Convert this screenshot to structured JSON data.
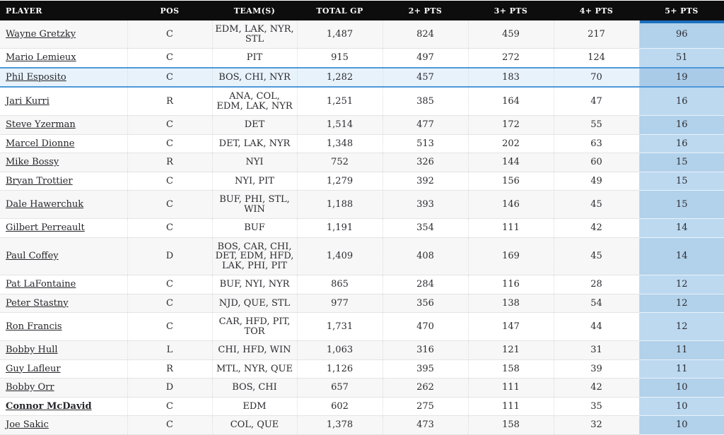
{
  "colors": {
    "header_bg": "#0d0d0d",
    "header_text": "#ffffff",
    "row_stripe": "#f7f7f7",
    "highlight_row_bg": "#e8f2fb",
    "highlight_row_border": "#4d99d9",
    "sort_column_bg": "#bcd9f0",
    "sort_column_bar": "#1a6fbe",
    "text": "#2b2b30"
  },
  "table": {
    "sorted_column": "pts5",
    "columns": [
      {
        "key": "player",
        "label": "PLAYER"
      },
      {
        "key": "pos",
        "label": "POS"
      },
      {
        "key": "teams",
        "label": "TEAM(S)"
      },
      {
        "key": "total_gp",
        "label": "TOTAL GP"
      },
      {
        "key": "pts2",
        "label": "2+ PTS"
      },
      {
        "key": "pts3",
        "label": "3+ PTS"
      },
      {
        "key": "pts4",
        "label": "4+ PTS"
      },
      {
        "key": "pts5",
        "label": "5+ PTS"
      }
    ],
    "rows": [
      {
        "player": "Wayne Gretzky",
        "pos": "C",
        "teams": "EDM, LAK, NYR, STL",
        "total_gp": "1,487",
        "pts2": "824",
        "pts3": "459",
        "pts4": "217",
        "pts5": "96",
        "bold": false,
        "highlighted": false
      },
      {
        "player": "Mario Lemieux",
        "pos": "C",
        "teams": "PIT",
        "total_gp": "915",
        "pts2": "497",
        "pts3": "272",
        "pts4": "124",
        "pts5": "51",
        "bold": false,
        "highlighted": false
      },
      {
        "player": "Phil Esposito",
        "pos": "C",
        "teams": "BOS, CHI, NYR",
        "total_gp": "1,282",
        "pts2": "457",
        "pts3": "183",
        "pts4": "70",
        "pts5": "19",
        "bold": false,
        "highlighted": true
      },
      {
        "player": "Jari Kurri",
        "pos": "R",
        "teams": "ANA, COL, EDM, LAK, NYR",
        "total_gp": "1,251",
        "pts2": "385",
        "pts3": "164",
        "pts4": "47",
        "pts5": "16",
        "bold": false,
        "highlighted": false
      },
      {
        "player": "Steve Yzerman",
        "pos": "C",
        "teams": "DET",
        "total_gp": "1,514",
        "pts2": "477",
        "pts3": "172",
        "pts4": "55",
        "pts5": "16",
        "bold": false,
        "highlighted": false
      },
      {
        "player": "Marcel Dionne",
        "pos": "C",
        "teams": "DET, LAK, NYR",
        "total_gp": "1,348",
        "pts2": "513",
        "pts3": "202",
        "pts4": "63",
        "pts5": "16",
        "bold": false,
        "highlighted": false
      },
      {
        "player": "Mike Bossy",
        "pos": "R",
        "teams": "NYI",
        "total_gp": "752",
        "pts2": "326",
        "pts3": "144",
        "pts4": "60",
        "pts5": "15",
        "bold": false,
        "highlighted": false
      },
      {
        "player": "Bryan Trottier",
        "pos": "C",
        "teams": "NYI, PIT",
        "total_gp": "1,279",
        "pts2": "392",
        "pts3": "156",
        "pts4": "49",
        "pts5": "15",
        "bold": false,
        "highlighted": false
      },
      {
        "player": "Dale Hawerchuk",
        "pos": "C",
        "teams": "BUF, PHI, STL, WIN",
        "total_gp": "1,188",
        "pts2": "393",
        "pts3": "146",
        "pts4": "45",
        "pts5": "15",
        "bold": false,
        "highlighted": false
      },
      {
        "player": "Gilbert Perreault",
        "pos": "C",
        "teams": "BUF",
        "total_gp": "1,191",
        "pts2": "354",
        "pts3": "111",
        "pts4": "42",
        "pts5": "14",
        "bold": false,
        "highlighted": false
      },
      {
        "player": "Paul Coffey",
        "pos": "D",
        "teams": "BOS, CAR, CHI, DET, EDM, HFD, LAK, PHI, PIT",
        "total_gp": "1,409",
        "pts2": "408",
        "pts3": "169",
        "pts4": "45",
        "pts5": "14",
        "bold": false,
        "highlighted": false
      },
      {
        "player": "Pat LaFontaine",
        "pos": "C",
        "teams": "BUF, NYI, NYR",
        "total_gp": "865",
        "pts2": "284",
        "pts3": "116",
        "pts4": "28",
        "pts5": "12",
        "bold": false,
        "highlighted": false
      },
      {
        "player": "Peter Stastny",
        "pos": "C",
        "teams": "NJD, QUE, STL",
        "total_gp": "977",
        "pts2": "356",
        "pts3": "138",
        "pts4": "54",
        "pts5": "12",
        "bold": false,
        "highlighted": false
      },
      {
        "player": "Ron Francis",
        "pos": "C",
        "teams": "CAR, HFD, PIT, TOR",
        "total_gp": "1,731",
        "pts2": "470",
        "pts3": "147",
        "pts4": "44",
        "pts5": "12",
        "bold": false,
        "highlighted": false
      },
      {
        "player": "Bobby Hull",
        "pos": "L",
        "teams": "CHI, HFD, WIN",
        "total_gp": "1,063",
        "pts2": "316",
        "pts3": "121",
        "pts4": "31",
        "pts5": "11",
        "bold": false,
        "highlighted": false
      },
      {
        "player": "Guy Lafleur",
        "pos": "R",
        "teams": "MTL, NYR, QUE",
        "total_gp": "1,126",
        "pts2": "395",
        "pts3": "158",
        "pts4": "39",
        "pts5": "11",
        "bold": false,
        "highlighted": false
      },
      {
        "player": "Bobby Orr",
        "pos": "D",
        "teams": "BOS, CHI",
        "total_gp": "657",
        "pts2": "262",
        "pts3": "111",
        "pts4": "42",
        "pts5": "10",
        "bold": false,
        "highlighted": false
      },
      {
        "player": "Connor McDavid",
        "pos": "C",
        "teams": "EDM",
        "total_gp": "602",
        "pts2": "275",
        "pts3": "111",
        "pts4": "35",
        "pts5": "10",
        "bold": true,
        "highlighted": false
      },
      {
        "player": "Joe Sakic",
        "pos": "C",
        "teams": "COL, QUE",
        "total_gp": "1,378",
        "pts2": "473",
        "pts3": "158",
        "pts4": "32",
        "pts5": "10",
        "bold": false,
        "highlighted": false
      }
    ]
  }
}
